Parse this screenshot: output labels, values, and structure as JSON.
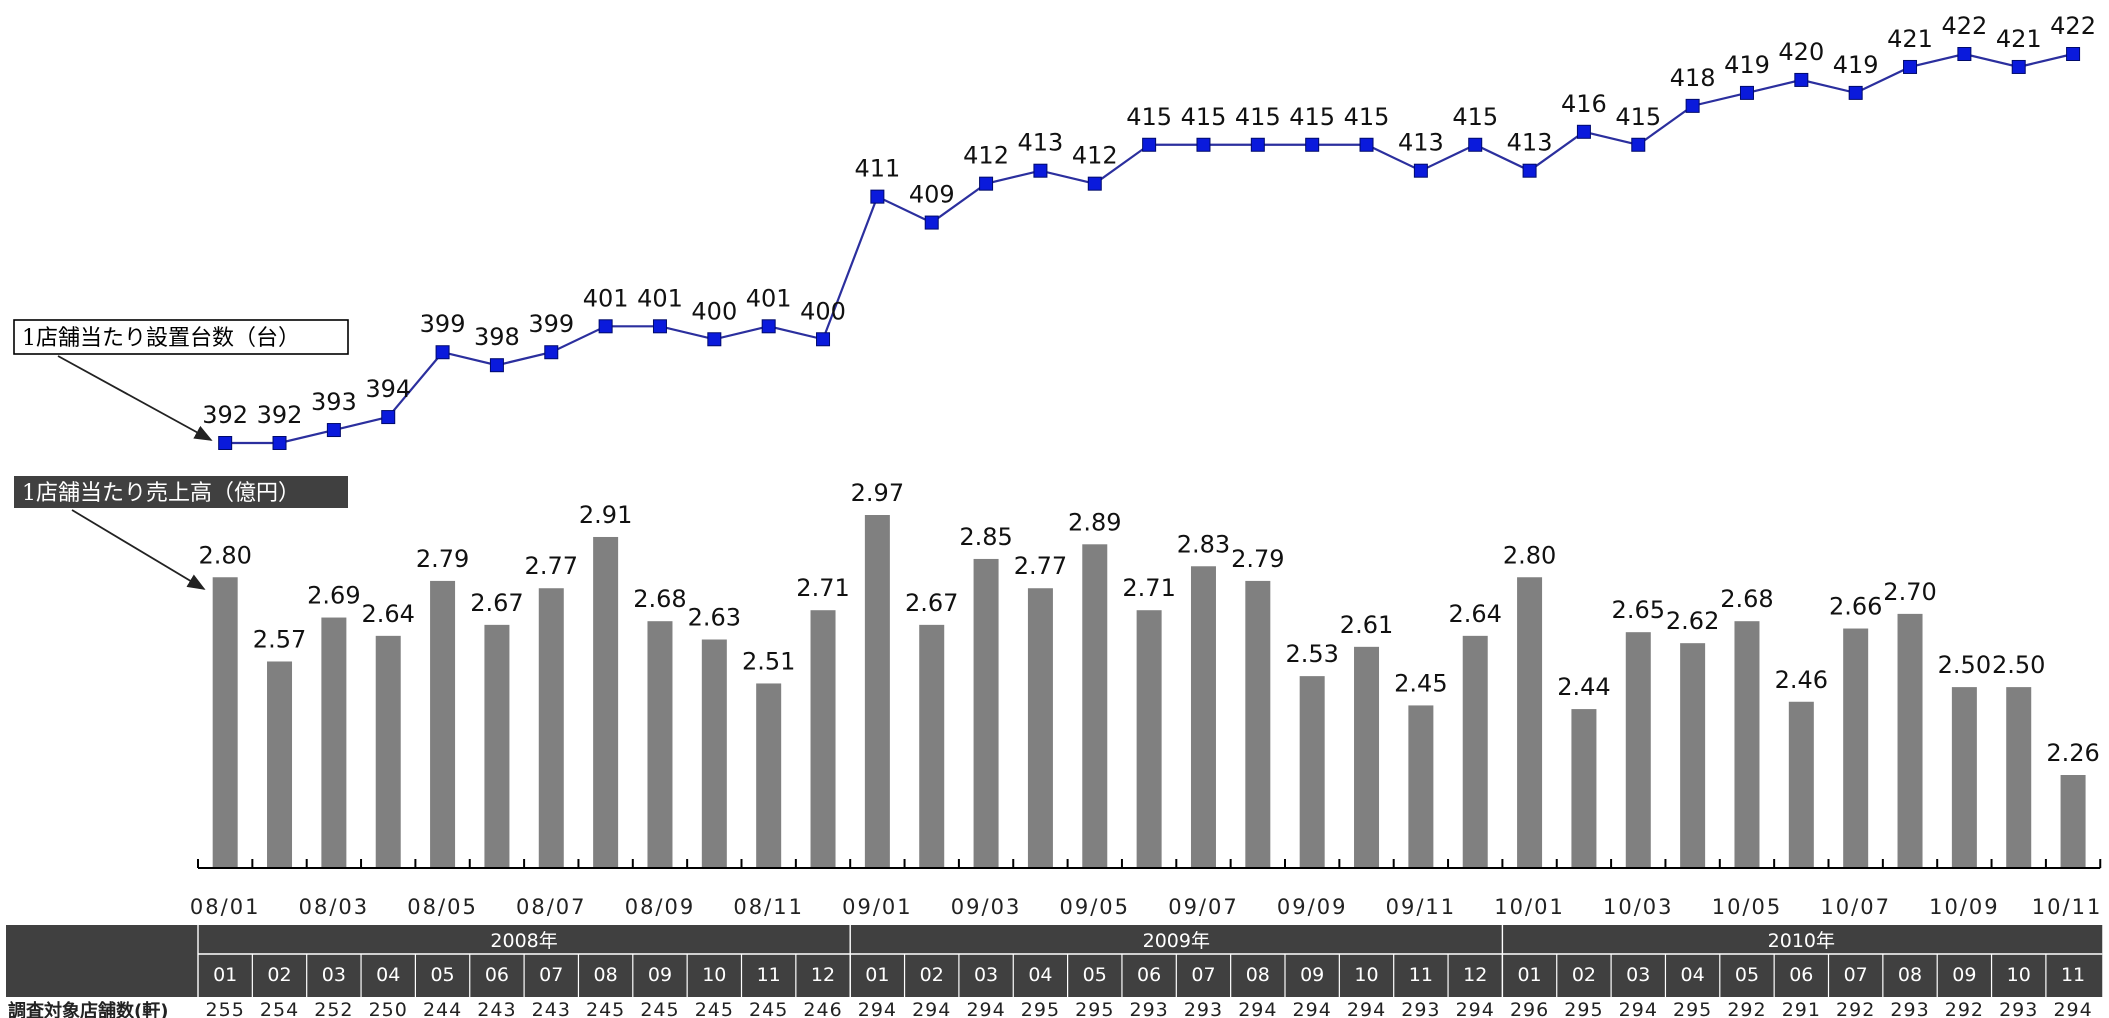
{
  "chart_data": {
    "type": "bar+line",
    "months": [
      "08/01",
      "08/02",
      "08/03",
      "08/04",
      "08/05",
      "08/06",
      "08/07",
      "08/08",
      "08/09",
      "08/10",
      "08/11",
      "08/12",
      "09/01",
      "09/02",
      "09/03",
      "09/04",
      "09/05",
      "09/06",
      "09/07",
      "09/08",
      "09/09",
      "09/10",
      "09/11",
      "09/12",
      "10/01",
      "10/02",
      "10/03",
      "10/04",
      "10/05",
      "10/06",
      "10/07",
      "10/08",
      "10/09",
      "10/10",
      "10/11"
    ],
    "x_tick_labels": [
      "08/01",
      "08/03",
      "08/05",
      "08/07",
      "08/09",
      "08/11",
      "09/01",
      "09/03",
      "09/05",
      "09/07",
      "09/09",
      "09/11",
      "10/01",
      "10/03",
      "10/05",
      "10/07",
      "10/09",
      "10/11"
    ],
    "series": [
      {
        "name": "1店舗当たり売上高（億円）",
        "type": "bar",
        "color": "#808080",
        "values": [
          2.8,
          2.57,
          2.69,
          2.64,
          2.79,
          2.67,
          2.77,
          2.91,
          2.68,
          2.63,
          2.51,
          2.71,
          2.97,
          2.67,
          2.85,
          2.77,
          2.89,
          2.71,
          2.83,
          2.79,
          2.53,
          2.61,
          2.45,
          2.64,
          2.8,
          2.44,
          2.65,
          2.62,
          2.68,
          2.46,
          2.66,
          2.7,
          2.5,
          2.5,
          2.26
        ],
        "labels": [
          "2.80",
          "2.57",
          "2.69",
          "2.64",
          "2.79",
          "2.67",
          "2.77",
          "2.91",
          "2.68",
          "2.63",
          "2.51",
          "2.71",
          "2.97",
          "2.67",
          "2.85",
          "2.77",
          "2.89",
          "2.71",
          "2.83",
          "2.79",
          "2.53",
          "2.61",
          "2.45",
          "2.64",
          "2.80",
          "2.44",
          "2.65",
          "2.62",
          "2.68",
          "2.46",
          "2.66",
          "2.70",
          "2.50",
          "2.50",
          "2.26"
        ]
      },
      {
        "name": "1店舗当たり設置台数（台）",
        "type": "line",
        "color": "#2b2f9e",
        "marker_color": "#0a1adc",
        "values": [
          392,
          392,
          393,
          394,
          399,
          398,
          399,
          401,
          401,
          400,
          401,
          400,
          411,
          409,
          412,
          413,
          412,
          415,
          415,
          415,
          415,
          415,
          413,
          415,
          413,
          416,
          415,
          418,
          419,
          420,
          419,
          421,
          422,
          421,
          422
        ]
      }
    ],
    "table": {
      "years": [
        {
          "label": "2008年",
          "months": 12
        },
        {
          "label": "2009年",
          "months": 12
        },
        {
          "label": "2010年",
          "months": 11
        }
      ],
      "month_labels": [
        "01",
        "02",
        "03",
        "04",
        "05",
        "06",
        "07",
        "08",
        "09",
        "10",
        "11",
        "12",
        "01",
        "02",
        "03",
        "04",
        "05",
        "06",
        "07",
        "08",
        "09",
        "10",
        "11",
        "12",
        "01",
        "02",
        "03",
        "04",
        "05",
        "06",
        "07",
        "08",
        "09",
        "10",
        "11"
      ],
      "row_label": "調査対象店舗数(軒)",
      "store_counts": [
        255,
        254,
        252,
        250,
        244,
        243,
        243,
        245,
        245,
        245,
        245,
        246,
        294,
        294,
        294,
        295,
        295,
        293,
        293,
        294,
        294,
        294,
        293,
        294,
        296,
        295,
        294,
        295,
        292,
        291,
        292,
        293,
        292,
        293,
        294
      ]
    }
  }
}
